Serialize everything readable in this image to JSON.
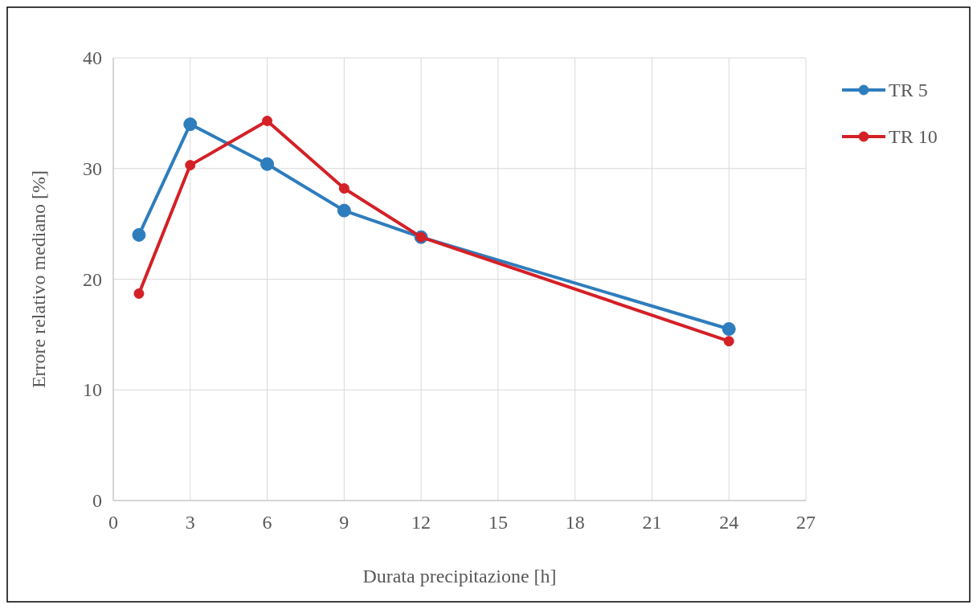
{
  "chart_data": {
    "type": "line",
    "xlabel": "Durata precipitazione [h]",
    "ylabel": "Errore relativo mediano [%]",
    "x": [
      1,
      3,
      6,
      9,
      12,
      24
    ],
    "series": [
      {
        "name": "TR 5",
        "color": "#2e7dbd",
        "values": [
          24.0,
          34.0,
          30.4,
          26.2,
          23.8,
          15.5
        ]
      },
      {
        "name": "TR 10",
        "color": "#d42027",
        "values": [
          18.7,
          30.3,
          34.3,
          28.2,
          23.8,
          14.4
        ]
      }
    ],
    "xlim": [
      0,
      27
    ],
    "xticks": [
      0,
      3,
      6,
      9,
      12,
      15,
      18,
      21,
      24,
      27
    ],
    "ylim": [
      0,
      40
    ],
    "yticks": [
      0,
      10,
      20,
      30,
      40
    ],
    "grid": true,
    "legend": "right",
    "marker": "circle",
    "line_style": "solid"
  }
}
